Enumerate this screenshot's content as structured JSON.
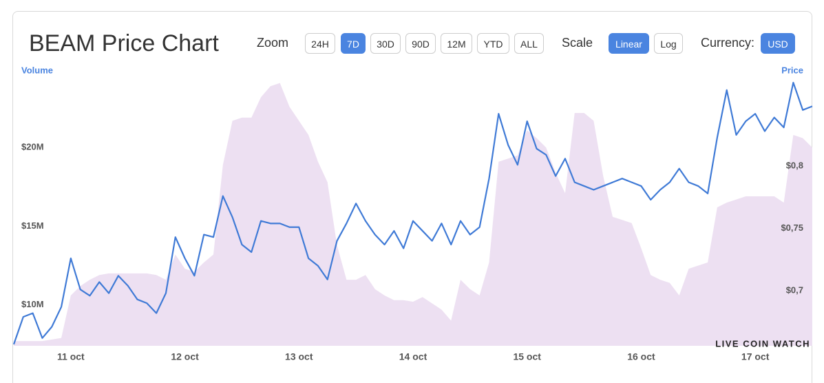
{
  "chart_data": {
    "type": "line",
    "title": "BEAM Price Chart",
    "categories": [
      null,
      null,
      null,
      null,
      null,
      null,
      "11 oct",
      null,
      null,
      null,
      null,
      null,
      null,
      null,
      null,
      null,
      null,
      null,
      "12 oct",
      null,
      null,
      null,
      null,
      null,
      null,
      null,
      null,
      null,
      null,
      null,
      "13 oct",
      null,
      null,
      null,
      null,
      null,
      null,
      null,
      null,
      null,
      null,
      null,
      "14 oct",
      null,
      null,
      null,
      null,
      null,
      null,
      null,
      null,
      null,
      null,
      null,
      "15 oct",
      null,
      null,
      null,
      null,
      null,
      null,
      null,
      null,
      null,
      null,
      null,
      "16 oct",
      null,
      null,
      null,
      null,
      null,
      null,
      null,
      null,
      null,
      null,
      null,
      "17 oct",
      null,
      null,
      null,
      null,
      null,
      null
    ],
    "series": [
      {
        "name": "Volume",
        "type": "area",
        "color": "#ede0f2",
        "label_color": "#4a84e0",
        "values": [
          7.7,
          7.7,
          7.7,
          7.7,
          7.8,
          7.9,
          10.6,
          11.2,
          11.6,
          11.9,
          12.0,
          12.0,
          12.0,
          12.0,
          12.0,
          11.9,
          11.6,
          13.2,
          12.3,
          12.1,
          12.7,
          13.2,
          18.9,
          21.7,
          21.9,
          21.9,
          23.2,
          23.9,
          24.1,
          22.6,
          21.7,
          20.8,
          19.1,
          17.8,
          13.8,
          11.6,
          11.6,
          11.9,
          11.0,
          10.6,
          10.3,
          10.3,
          10.2,
          10.5,
          10.1,
          9.7,
          9.0,
          11.6,
          11.0,
          10.6,
          12.7,
          19.1,
          19.3,
          19.5,
          21.1,
          20.6,
          20.0,
          18.4,
          17.1,
          22.2,
          22.2,
          21.7,
          18.2,
          15.6,
          15.4,
          15.2,
          13.6,
          11.9,
          11.6,
          11.4,
          10.6,
          12.3,
          12.5,
          12.7,
          16.2,
          16.5,
          16.7,
          16.9,
          16.9,
          16.9,
          16.9,
          16.5,
          20.8,
          20.6,
          20.0
        ]
      },
      {
        "name": "Price",
        "type": "line",
        "axis": "y2",
        "color": "#3f7ad6",
        "label_color": "#4a84e0",
        "values": [
          0.657,
          0.679,
          0.682,
          0.662,
          0.671,
          0.687,
          0.726,
          0.701,
          0.696,
          0.707,
          0.698,
          0.712,
          0.704,
          0.693,
          0.69,
          0.682,
          0.698,
          0.743,
          0.726,
          0.712,
          0.745,
          0.743,
          0.776,
          0.759,
          0.737,
          0.731,
          0.756,
          0.754,
          0.754,
          0.751,
          0.751,
          0.726,
          0.72,
          0.709,
          0.74,
          0.754,
          0.77,
          0.756,
          0.745,
          0.737,
          0.748,
          0.734,
          0.756,
          0.748,
          0.74,
          0.754,
          0.737,
          0.756,
          0.745,
          0.751,
          0.79,
          0.842,
          0.817,
          0.801,
          0.836,
          0.814,
          0.809,
          0.792,
          0.806,
          0.787,
          0.784,
          0.781,
          0.784,
          0.787,
          0.79,
          0.787,
          0.784,
          0.773,
          0.781,
          0.787,
          0.798,
          0.787,
          0.784,
          0.778,
          0.823,
          0.861,
          0.825,
          0.836,
          0.842,
          0.828,
          0.839,
          0.831,
          0.867,
          0.845,
          0.848
        ]
      }
    ],
    "ylim": [
      7.4,
      25
    ],
    "yticks": [
      {
        "value": 10,
        "label": "$10M"
      },
      {
        "value": 15,
        "label": "$15M"
      },
      {
        "value": 20,
        "label": "$20M"
      }
    ],
    "y2lim": [
      0.6558,
      0.878
    ],
    "y2ticks": [
      {
        "value": 0.7,
        "label": "$0,7"
      },
      {
        "value": 0.75,
        "label": "$0,75"
      },
      {
        "value": 0.8,
        "label": "$0,8"
      }
    ],
    "grid": false,
    "watermark": "LIVE COIN WATCH"
  },
  "toolbar": {
    "zoom": {
      "label": "Zoom",
      "options": [
        "24H",
        "7D",
        "30D",
        "90D",
        "12M",
        "YTD",
        "ALL"
      ],
      "selected": "7D"
    },
    "scale": {
      "label": "Scale",
      "options": [
        "Linear",
        "Log"
      ],
      "selected": "Linear"
    },
    "currency": {
      "label": "Currency:",
      "options": [
        "USD"
      ],
      "selected": "USD"
    }
  }
}
